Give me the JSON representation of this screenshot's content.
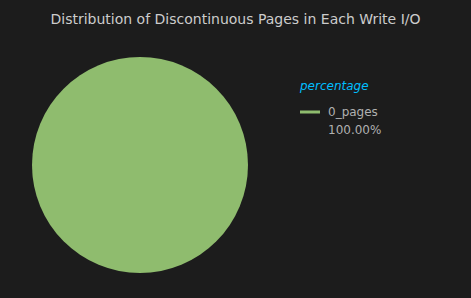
{
  "chart_data": {
    "type": "pie",
    "title": "Distribution of Discontinuous Pages in Each Write I/O",
    "categories": [
      "0_pages"
    ],
    "values": [
      100.0
    ],
    "value_labels": [
      "100.00%"
    ],
    "colors": [
      "#8fbc6e"
    ],
    "legend": "right",
    "legend_title": "percentage"
  }
}
